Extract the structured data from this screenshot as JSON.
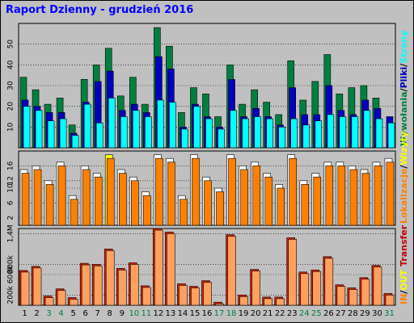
{
  "title": "Raport Dzienny -  grudzień 2016",
  "colors": {
    "visits": "#008040",
    "pages": "#0000c0",
    "files": "#00ffff",
    "hits": "#008040",
    "sites": "#ff8000",
    "kbytes": "#ff8000",
    "weekend": "#008040",
    "weekday": "#000000"
  },
  "chart_data": [
    {
      "type": "bar",
      "panel": "top",
      "categories": [
        "1",
        "2",
        "3",
        "4",
        "5",
        "6",
        "7",
        "8",
        "9",
        "10",
        "11",
        "12",
        "13",
        "14",
        "15",
        "16",
        "17",
        "18",
        "19",
        "20",
        "21",
        "22",
        "23",
        "24",
        "25",
        "26",
        "27",
        "28",
        "29",
        "30",
        "31"
      ],
      "weekend_days": [
        "3",
        "4",
        "10",
        "11",
        "17",
        "18",
        "24",
        "25",
        "31"
      ],
      "ylim": [
        0,
        60
      ],
      "yticks": [
        "10",
        "20",
        "30",
        "40",
        "50"
      ],
      "series": [
        {
          "name": "Wywołania",
          "values": [
            34,
            28,
            21,
            24,
            11,
            33,
            40,
            48,
            25,
            34,
            21,
            58,
            49,
            17,
            29,
            26,
            15,
            40,
            21,
            28,
            22,
            16,
            42,
            23,
            32,
            45,
            26,
            29,
            30,
            24,
            0
          ]
        },
        {
          "name": "Pliki",
          "values": [
            23,
            20,
            17,
            17,
            7,
            22,
            32,
            37,
            18,
            21,
            17,
            44,
            38,
            10,
            21,
            15,
            10,
            33,
            15,
            19,
            15,
            11,
            29,
            16,
            16,
            30,
            18,
            16,
            23,
            19,
            15
          ]
        },
        {
          "name": "Strony",
          "values": [
            20,
            18,
            13,
            14,
            6,
            21,
            12,
            24,
            15,
            18,
            15,
            23,
            22,
            9,
            20,
            14,
            9,
            18,
            14,
            15,
            14,
            10,
            14,
            11,
            13,
            16,
            15,
            15,
            18,
            14,
            12
          ]
        }
      ]
    },
    {
      "type": "bar",
      "panel": "middle",
      "categories": [
        "1",
        "2",
        "3",
        "4",
        "5",
        "6",
        "7",
        "8",
        "9",
        "10",
        "11",
        "12",
        "13",
        "14",
        "15",
        "16",
        "17",
        "18",
        "19",
        "20",
        "21",
        "22",
        "23",
        "24",
        "25",
        "26",
        "27",
        "28",
        "29",
        "30",
        "31"
      ],
      "ylim": [
        0,
        20
      ],
      "yticks": [
        "2",
        "6",
        "10",
        "12",
        "16"
      ],
      "series": [
        {
          "name": "Wizyty",
          "values": [
            15,
            16,
            12,
            17,
            8,
            16,
            14,
            19,
            15,
            13,
            9,
            19,
            18,
            8,
            19,
            13,
            10,
            19,
            16,
            17,
            14,
            11,
            19,
            12,
            14,
            17,
            17,
            16,
            15,
            17,
            18
          ]
        },
        {
          "name": "Lokalizacje",
          "values": [
            14,
            15,
            11,
            16,
            7,
            15,
            13,
            18,
            14,
            12,
            8,
            18,
            17,
            7,
            18,
            12,
            9,
            18,
            15,
            16,
            13,
            10,
            18,
            11,
            13,
            16,
            16,
            15,
            14,
            16,
            17
          ]
        }
      ]
    },
    {
      "type": "bar",
      "panel": "bottom",
      "categories": [
        "1",
        "2",
        "3",
        "4",
        "5",
        "6",
        "7",
        "8",
        "9",
        "10",
        "11",
        "12",
        "13",
        "14",
        "15",
        "16",
        "17",
        "18",
        "19",
        "20",
        "21",
        "22",
        "23",
        "24",
        "25",
        "26",
        "27",
        "28",
        "29",
        "30",
        "31"
      ],
      "ylim": [
        0,
        1500000
      ],
      "yticks": [
        "200k",
        "600k",
        "800k",
        "1,4M"
      ],
      "series": [
        {
          "name": "Transfer",
          "values": [
            680000,
            760000,
            180000,
            320000,
            150000,
            820000,
            800000,
            1100000,
            720000,
            830000,
            380000,
            1500000,
            1430000,
            420000,
            370000,
            480000,
            60000,
            1380000,
            200000,
            700000,
            160000,
            160000,
            1320000,
            650000,
            690000,
            950000,
            400000,
            340000,
            540000,
            780000,
            230000
          ]
        }
      ]
    }
  ],
  "right_legend": {
    "top": [
      {
        "text": "Wywołania",
        "color": "#008040"
      },
      {
        "text": "/",
        "color": "#000000"
      },
      {
        "text": "Pliki",
        "color": "#0000c0"
      },
      {
        "text": "/",
        "color": "#000000"
      },
      {
        "text": "Strony",
        "color": "#00ffff"
      }
    ],
    "middle": [
      {
        "text": "Lokalizacje",
        "color": "#ff8000"
      },
      {
        "text": "/",
        "color": "#000000"
      },
      {
        "text": "Wizyty",
        "color": "#ffff00"
      }
    ],
    "bottom": [
      {
        "text": "IN",
        "color": "#ff8000"
      },
      {
        "text": "/",
        "color": "#000000"
      },
      {
        "text": "OUT",
        "color": "#ffff00"
      },
      {
        "text": " ",
        "color": "#000000"
      },
      {
        "text": "Transfer",
        "color": "#c00000"
      }
    ]
  }
}
